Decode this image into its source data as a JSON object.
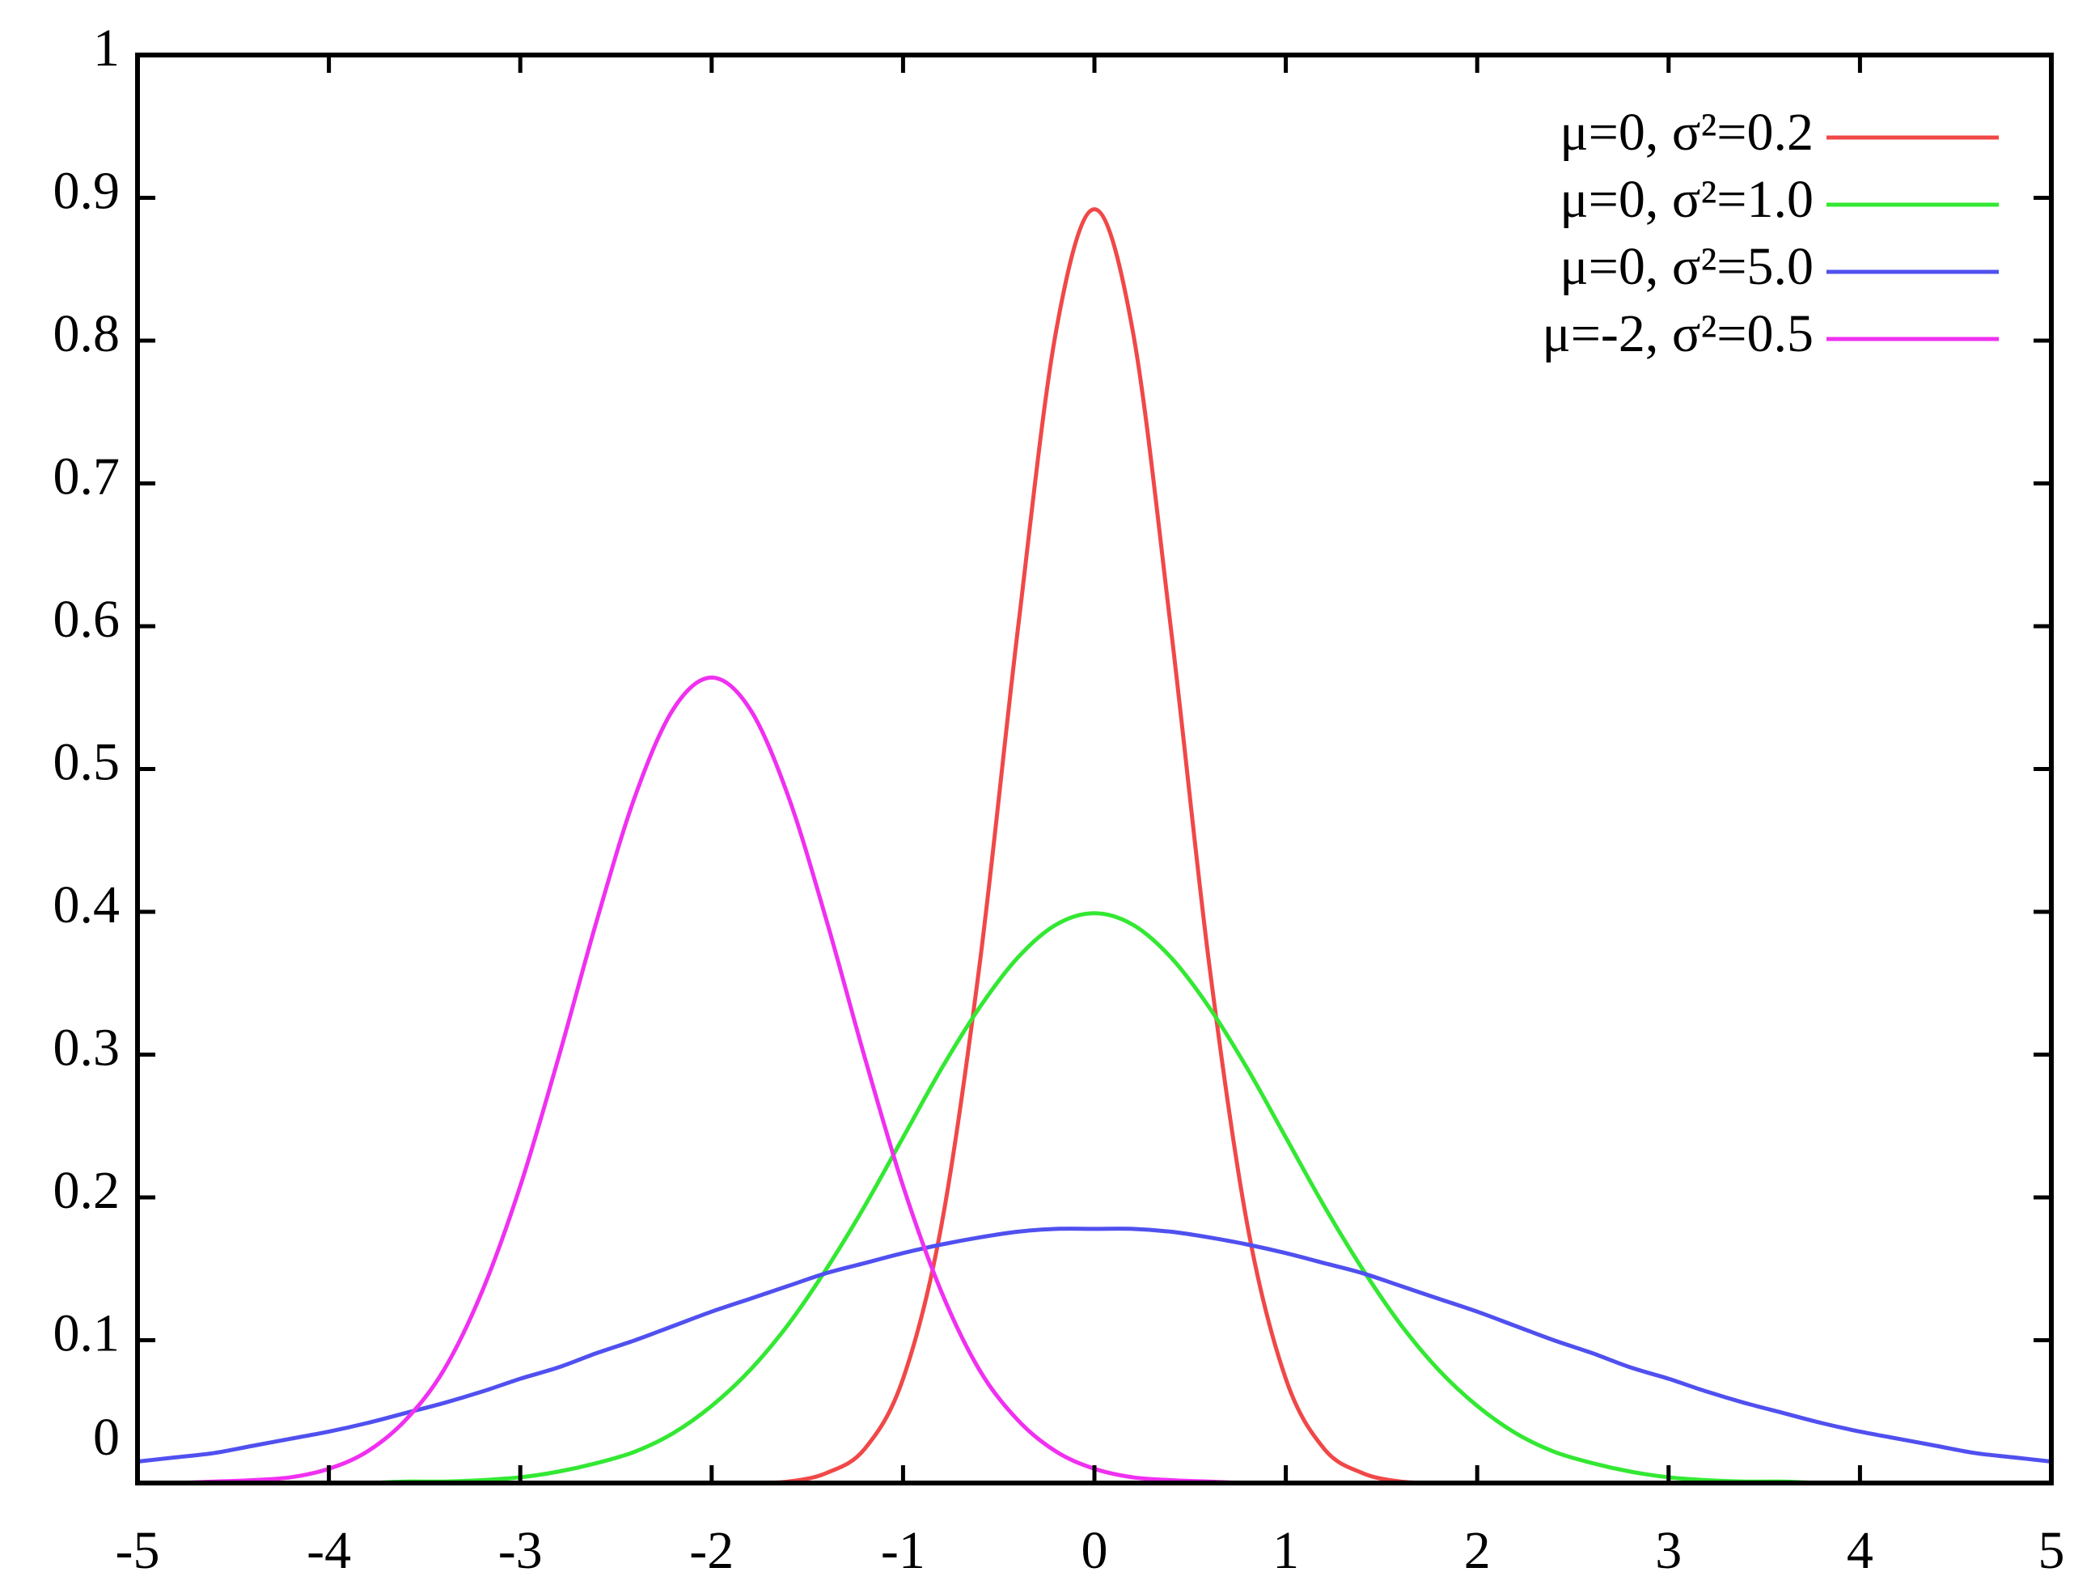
{
  "chart_data": {
    "type": "line",
    "x": [
      -5,
      -4.8,
      -4.6,
      -4.4,
      -4.2,
      -4,
      -3.8,
      -3.6,
      -3.4,
      -3.2,
      -3,
      -2.8,
      -2.6,
      -2.4,
      -2.2,
      -2,
      -1.8,
      -1.6,
      -1.4,
      -1.2,
      -1,
      -0.8,
      -0.6,
      -0.4,
      -0.2,
      0,
      0.2,
      0.4,
      0.6,
      0.8,
      1,
      1.2,
      1.4,
      1.6,
      1.8,
      2,
      2.2,
      2.4,
      2.6,
      2.8,
      3,
      3.2,
      3.4,
      3.6,
      3.8,
      4,
      4.2,
      4.4,
      4.6,
      4.8,
      5
    ],
    "series": [
      {
        "name": "μ=0, σ²=0.2",
        "color": "#f04848",
        "values": [
          0,
          0,
          0,
          0,
          0,
          0,
          0,
          0,
          0,
          0,
          0,
          0,
          0,
          0,
          0,
          0,
          0,
          0.001,
          0.007,
          0.024,
          0.073,
          0.18,
          0.363,
          0.598,
          0.807,
          0.892,
          0.807,
          0.598,
          0.363,
          0.18,
          0.073,
          0.024,
          0.007,
          0.001,
          0,
          0,
          0,
          0,
          0,
          0,
          0,
          0,
          0,
          0,
          0,
          0,
          0,
          0,
          0,
          0,
          0
        ]
      },
      {
        "name": "μ=0, σ²=1.0",
        "color": "#33e833",
        "values": [
          0,
          0,
          0,
          0,
          0,
          0,
          0,
          0.001,
          0.001,
          0.002,
          0.004,
          0.008,
          0.014,
          0.022,
          0.035,
          0.054,
          0.079,
          0.111,
          0.15,
          0.194,
          0.242,
          0.29,
          0.333,
          0.368,
          0.391,
          0.399,
          0.391,
          0.368,
          0.333,
          0.29,
          0.242,
          0.194,
          0.15,
          0.111,
          0.079,
          0.054,
          0.035,
          0.022,
          0.014,
          0.008,
          0.004,
          0.002,
          0.001,
          0.001,
          0,
          0,
          0,
          0,
          0,
          0,
          0
        ]
      },
      {
        "name": "μ=0, σ²=5.0",
        "color": "#5050f0",
        "values": [
          0.015,
          0.018,
          0.021,
          0.026,
          0.031,
          0.036,
          0.042,
          0.049,
          0.056,
          0.064,
          0.073,
          0.081,
          0.091,
          0.1,
          0.11,
          0.12,
          0.129,
          0.138,
          0.147,
          0.154,
          0.161,
          0.167,
          0.172,
          0.176,
          0.178,
          0.178,
          0.178,
          0.176,
          0.172,
          0.167,
          0.161,
          0.154,
          0.147,
          0.138,
          0.129,
          0.12,
          0.11,
          0.1,
          0.091,
          0.081,
          0.073,
          0.064,
          0.056,
          0.049,
          0.042,
          0.036,
          0.031,
          0.026,
          0.021,
          0.018,
          0.015
        ]
      },
      {
        "name": "μ=-2, σ²=0.5",
        "color": "#f030f0",
        "values": [
          0,
          0,
          0.001,
          0.002,
          0.004,
          0.01,
          0.022,
          0.044,
          0.079,
          0.134,
          0.208,
          0.298,
          0.394,
          0.481,
          0.542,
          0.564,
          0.542,
          0.481,
          0.394,
          0.298,
          0.208,
          0.134,
          0.079,
          0.044,
          0.022,
          0.01,
          0.004,
          0.002,
          0.001,
          0,
          0,
          0,
          0,
          0,
          0,
          0,
          0,
          0,
          0,
          0,
          0,
          0,
          0,
          0,
          0,
          0,
          0,
          0,
          0,
          0,
          0
        ]
      }
    ],
    "xlim": [
      -5,
      5
    ],
    "xticks": [
      -5,
      -4,
      -3,
      -2,
      -1,
      0,
      1,
      2,
      3,
      4,
      5
    ],
    "ylim": [
      0,
      1
    ],
    "yticks": [
      0,
      0.1,
      0.2,
      0.3,
      0.4,
      0.5,
      0.6,
      0.7,
      0.8,
      0.9,
      1
    ],
    "grid": false,
    "legend": "top-right"
  }
}
